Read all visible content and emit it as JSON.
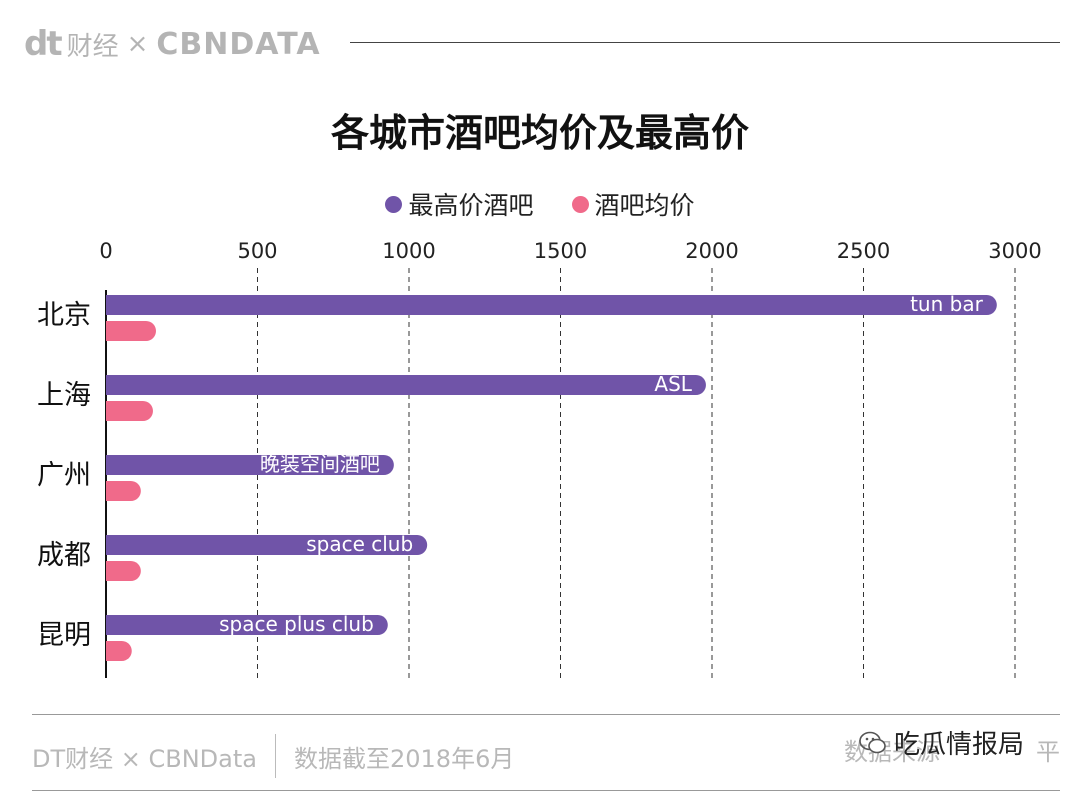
{
  "header": {
    "logo_dt": "dt",
    "logo_fin": "财经",
    "logo_x": "×",
    "logo_cbn": "CBNDATA"
  },
  "chart_data": {
    "type": "bar",
    "orientation": "horizontal",
    "title": "各城市酒吧均价及最高价",
    "categories": [
      "北京",
      "上海",
      "广州",
      "成都",
      "昆明"
    ],
    "series": [
      {
        "name": "最高价酒吧",
        "values": [
          2940,
          1980,
          950,
          1060,
          930
        ],
        "labels": [
          "tun bar",
          "ASL",
          "晚装空间酒吧",
          "space club",
          "space plus club"
        ],
        "color": "#7054a8"
      },
      {
        "name": "酒吧均价",
        "values": [
          165,
          155,
          115,
          115,
          85
        ],
        "color": "#f06a8a"
      }
    ],
    "xlim": [
      0,
      3000
    ],
    "xticks": [
      0,
      500,
      1000,
      1500,
      2000,
      2500,
      3000
    ],
    "grid": "vertical dashed",
    "legend": "top-center"
  },
  "footer": {
    "source_left": "DT财经 × CBNData",
    "date_note": "数据截至2018年6月",
    "right_partial": "数据来源",
    "right_tail": "平"
  },
  "watermark": {
    "label": "吃瓜情报局",
    "icon": "wechat-icon"
  }
}
